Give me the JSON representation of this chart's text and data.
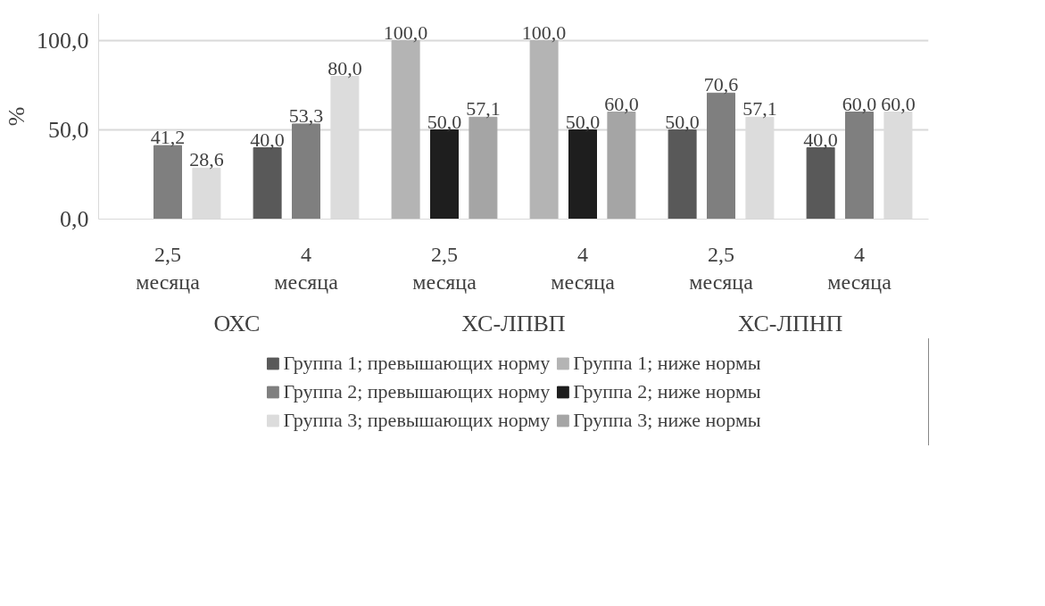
{
  "chart_data": {
    "type": "bar",
    "ylabel": "%",
    "categories": [
      "2,5 месяца",
      "4 месяца",
      "2,5 месяца",
      "4 месяца",
      "2,5 месяца",
      "4 месяца"
    ],
    "annotations": [
      "ОХС",
      "ХС-ЛПВП",
      "ХС-ЛПНП"
    ],
    "series": [
      {
        "name": "Группа 1; превышающих норму",
        "color": "#595959",
        "values": [
          null,
          40.0,
          null,
          null,
          50.0,
          40.0
        ],
        "value_labels": [
          null,
          "40,0",
          null,
          null,
          "50,0",
          "40,0"
        ]
      },
      {
        "name": "Группа 1; ниже нормы",
        "color": "#b4b4b4",
        "values": [
          null,
          null,
          100.0,
          100.0,
          null,
          null
        ],
        "value_labels": [
          null,
          null,
          "100,0",
          "100,0",
          null,
          null
        ]
      },
      {
        "name": "Группа 2; превышающих норму",
        "color": "#7f7f7f",
        "values": [
          41.2,
          53.3,
          null,
          null,
          70.6,
          60.0
        ],
        "value_labels": [
          "41,2",
          "53,3",
          null,
          null,
          "70,6",
          "60,0"
        ]
      },
      {
        "name": "Группа 2; ниже нормы",
        "color": "#1e1e1e",
        "values": [
          null,
          null,
          50.0,
          50.0,
          null,
          null
        ],
        "value_labels": [
          null,
          null,
          "50,0",
          "50,0",
          null,
          null
        ]
      },
      {
        "name": "Группа 3; превышающих норму",
        "color": "#dcdcdc",
        "values": [
          28.6,
          80.0,
          null,
          null,
          57.1,
          60.0
        ],
        "value_labels": [
          "28,6",
          "80,0",
          null,
          null,
          "57,1",
          "60,0"
        ]
      },
      {
        "name": "Группа 3; ниже нормы",
        "color": "#a5a5a5",
        "values": [
          null,
          null,
          57.1,
          60.0,
          null,
          null
        ],
        "value_labels": [
          null,
          null,
          "57,1",
          "60,0",
          null,
          null
        ]
      }
    ],
    "ylim": [
      0,
      115
    ],
    "yticks": [
      {
        "value": 0,
        "label": "0,0"
      },
      {
        "value": 50,
        "label": "50,0"
      },
      {
        "value": 100,
        "label": "100,0"
      }
    ],
    "grid": "y",
    "legend": "bottom"
  }
}
